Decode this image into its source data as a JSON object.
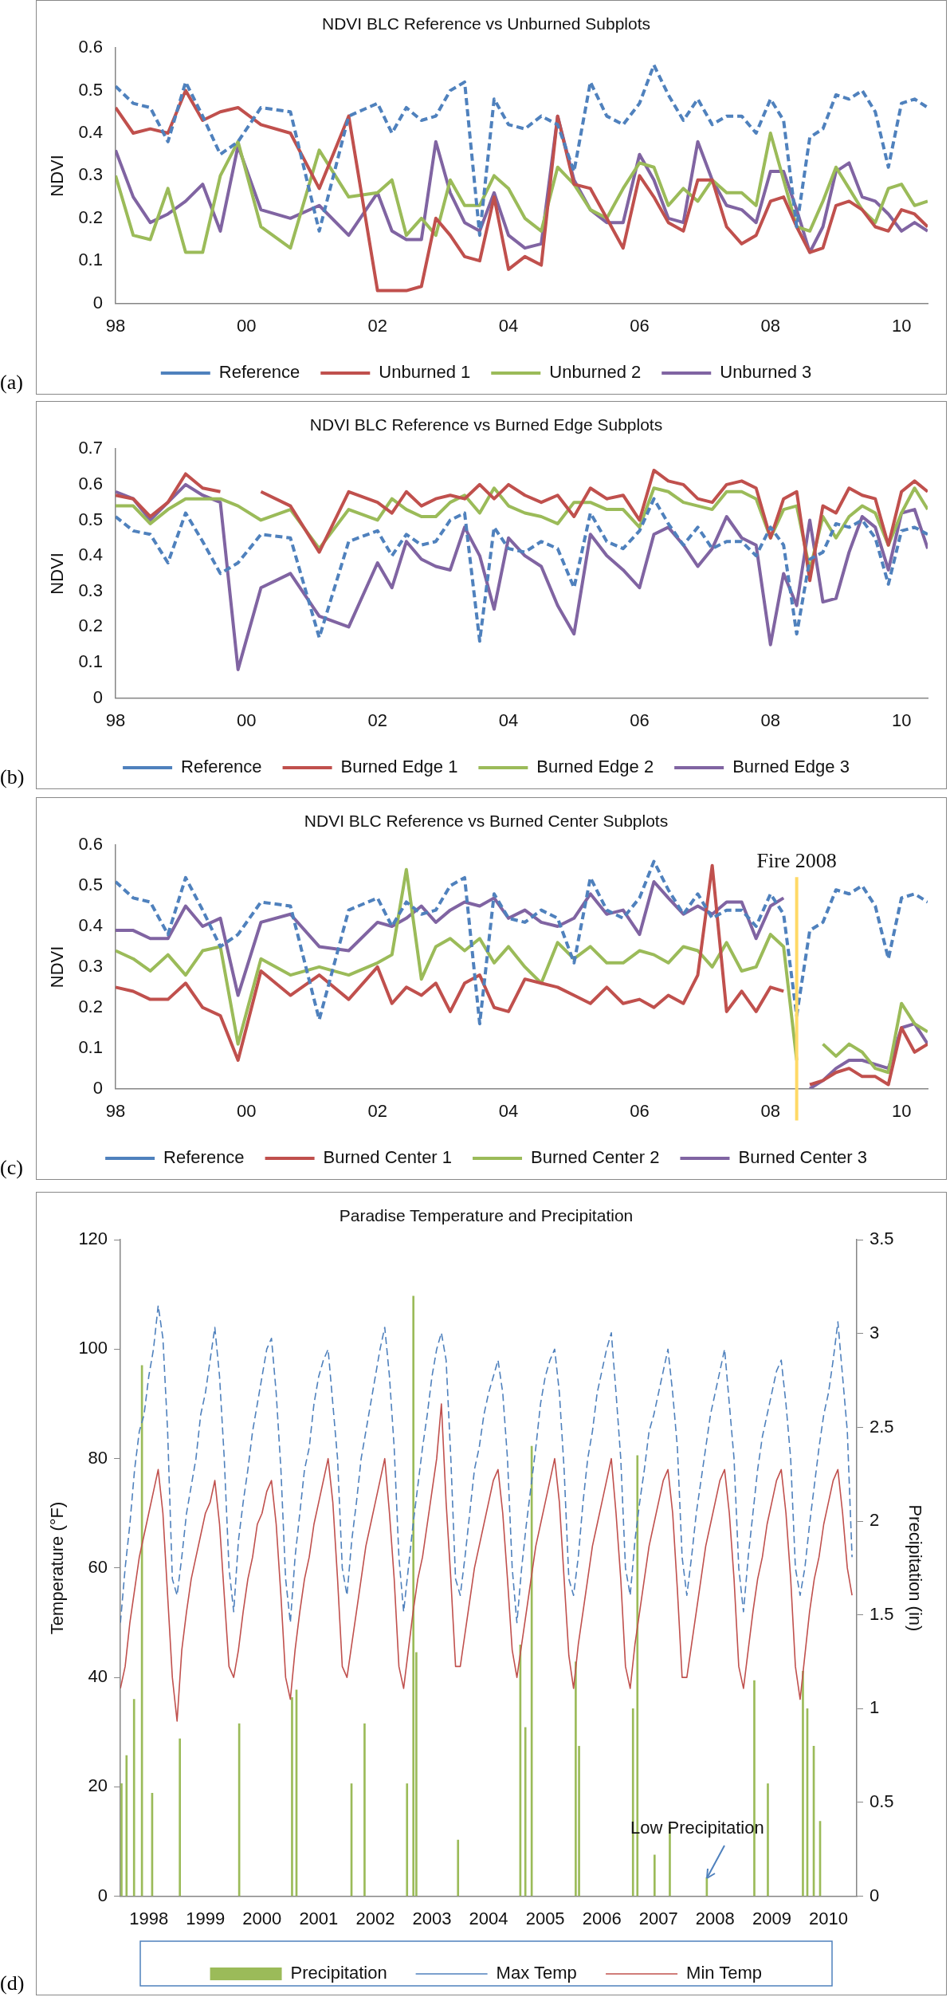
{
  "chart_data": [
    {
      "type": "line",
      "title": "NDVI BLC Reference vs Unburned Subplots",
      "ylabel": "NDVI",
      "legend": "bottom",
      "annotations": [
        "(a)"
      ],
      "x": [
        1998,
        1998.27,
        1998.53,
        1998.8,
        1999.07,
        1999.33,
        1999.6,
        1999.87,
        2000.22,
        2000.67,
        2001.11,
        2001.56,
        2002,
        2002.22,
        2002.44,
        2002.67,
        2002.89,
        2003.11,
        2003.33,
        2003.56,
        2003.78,
        2004,
        2004.25,
        2004.5,
        2004.75,
        2005,
        2005.25,
        2005.5,
        2005.75,
        2006,
        2006.22,
        2006.44,
        2006.67,
        2006.89,
        2007.11,
        2007.33,
        2007.56,
        2007.78,
        2008,
        2008.2,
        2008.4,
        2008.6,
        2008.8,
        2009,
        2009.2,
        2009.4,
        2009.6,
        2009.8,
        2010,
        2010.2,
        2010.4
      ],
      "xlim": [
        1998,
        2010.4
      ],
      "xticks": [
        {
          "value": 1998,
          "label": "98"
        },
        {
          "value": 2000,
          "label": "00"
        },
        {
          "value": 2002,
          "label": "02"
        },
        {
          "value": 2004,
          "label": "04"
        },
        {
          "value": 2006,
          "label": "06"
        },
        {
          "value": 2008,
          "label": "08"
        },
        {
          "value": 2010,
          "label": "10"
        }
      ],
      "ylim": [
        0,
        0.6
      ],
      "yticks": [
        0,
        0.1,
        0.2,
        0.3,
        0.4,
        0.5,
        0.6
      ],
      "series": [
        {
          "name": "Reference",
          "color": "#4f81bd",
          "line_style": "dashed",
          "values": [
            0.51,
            0.47,
            0.46,
            0.38,
            0.52,
            0.44,
            0.35,
            0.38,
            0.46,
            0.45,
            0.17,
            0.44,
            0.47,
            0.4,
            0.46,
            0.43,
            0.44,
            0.5,
            0.52,
            0.16,
            0.48,
            0.42,
            0.41,
            0.44,
            0.42,
            0.31,
            0.52,
            0.44,
            0.42,
            0.47,
            0.56,
            0.49,
            0.43,
            0.48,
            0.42,
            0.44,
            0.44,
            0.4,
            0.48,
            0.43,
            0.18,
            0.39,
            0.41,
            0.49,
            0.48,
            0.5,
            0.45,
            0.32,
            0.47,
            0.48,
            0.46
          ]
        },
        {
          "name": "Unburned 1",
          "color": "#c0504d",
          "values": [
            0.46,
            0.4,
            0.41,
            0.4,
            0.5,
            0.43,
            0.45,
            0.46,
            0.42,
            0.4,
            0.27,
            0.44,
            0.03,
            0.03,
            0.03,
            0.04,
            0.2,
            0.16,
            0.11,
            0.1,
            0.25,
            0.08,
            0.11,
            0.09,
            0.44,
            0.28,
            0.27,
            0.2,
            0.13,
            0.3,
            0.25,
            0.19,
            0.17,
            0.29,
            0.29,
            0.18,
            0.14,
            0.16,
            0.24,
            0.25,
            0.18,
            0.12,
            0.13,
            0.23,
            0.24,
            0.22,
            0.18,
            0.17,
            0.22,
            0.21,
            0.18
          ]
        },
        {
          "name": "Unburned 2",
          "color": "#9bbb59",
          "values": [
            0.3,
            0.16,
            0.15,
            0.27,
            0.12,
            0.12,
            0.3,
            0.38,
            0.18,
            0.13,
            0.36,
            0.25,
            0.26,
            0.29,
            0.16,
            0.2,
            0.16,
            0.29,
            0.23,
            0.23,
            0.3,
            0.27,
            0.2,
            0.17,
            0.32,
            0.28,
            0.22,
            0.2,
            0.27,
            0.33,
            0.32,
            0.23,
            0.27,
            0.24,
            0.29,
            0.26,
            0.26,
            0.23,
            0.4,
            0.29,
            0.18,
            0.17,
            0.24,
            0.32,
            0.27,
            0.22,
            0.19,
            0.27,
            0.28,
            0.23,
            0.24
          ]
        },
        {
          "name": "Unburned 3",
          "color": "#8064a2",
          "values": [
            0.36,
            0.25,
            0.19,
            0.21,
            0.24,
            0.28,
            0.17,
            0.37,
            0.22,
            0.2,
            0.23,
            0.16,
            0.26,
            0.17,
            0.15,
            0.15,
            0.38,
            0.26,
            0.19,
            0.17,
            0.26,
            0.16,
            0.13,
            0.14,
            0.44,
            0.29,
            0.22,
            0.19,
            0.19,
            0.35,
            0.29,
            0.2,
            0.19,
            0.38,
            0.29,
            0.23,
            0.22,
            0.19,
            0.31,
            0.31,
            0.22,
            0.12,
            0.18,
            0.31,
            0.33,
            0.25,
            0.24,
            0.21,
            0.17,
            0.19,
            0.17
          ]
        }
      ]
    },
    {
      "type": "line",
      "title": "NDVI BLC Reference vs Burned Edge Subplots",
      "ylabel": "NDVI",
      "legend": "bottom",
      "annotations": [
        "(b)"
      ],
      "x": [
        1998,
        1998.27,
        1998.53,
        1998.8,
        1999.07,
        1999.33,
        1999.6,
        1999.87,
        2000.22,
        2000.67,
        2001.11,
        2001.56,
        2002,
        2002.22,
        2002.44,
        2002.67,
        2002.89,
        2003.11,
        2003.33,
        2003.56,
        2003.78,
        2004,
        2004.25,
        2004.5,
        2004.75,
        2005,
        2005.25,
        2005.5,
        2005.75,
        2006,
        2006.22,
        2006.44,
        2006.67,
        2006.89,
        2007.11,
        2007.33,
        2007.56,
        2007.78,
        2008,
        2008.2,
        2008.4,
        2008.6,
        2008.8,
        2009,
        2009.2,
        2009.4,
        2009.6,
        2009.8,
        2010,
        2010.2,
        2010.4
      ],
      "xlim": [
        1998,
        2010.4
      ],
      "xticks": [
        {
          "value": 1998,
          "label": "98"
        },
        {
          "value": 2000,
          "label": "00"
        },
        {
          "value": 2002,
          "label": "02"
        },
        {
          "value": 2004,
          "label": "04"
        },
        {
          "value": 2006,
          "label": "06"
        },
        {
          "value": 2008,
          "label": "08"
        },
        {
          "value": 2010,
          "label": "10"
        }
      ],
      "ylim": [
        0,
        0.7
      ],
      "yticks": [
        0,
        0.1,
        0.2,
        0.3,
        0.4,
        0.5,
        0.6,
        0.7
      ],
      "series": [
        {
          "name": "Reference",
          "color": "#4f81bd",
          "line_style": "dashed",
          "values": [
            0.51,
            0.47,
            0.46,
            0.38,
            0.52,
            0.44,
            0.35,
            0.38,
            0.46,
            0.45,
            0.17,
            0.44,
            0.47,
            0.4,
            0.46,
            0.43,
            0.44,
            0.5,
            0.52,
            0.16,
            0.48,
            0.42,
            0.41,
            0.44,
            0.42,
            0.31,
            0.52,
            0.44,
            0.42,
            0.47,
            0.56,
            0.49,
            0.43,
            0.48,
            0.42,
            0.44,
            0.44,
            0.4,
            0.48,
            0.43,
            0.18,
            0.39,
            0.41,
            0.49,
            0.48,
            0.5,
            0.45,
            0.32,
            0.47,
            0.48,
            0.46
          ]
        },
        {
          "name": "Burned Edge 1",
          "color": "#c0504d",
          "values": [
            0.57,
            0.56,
            0.51,
            0.55,
            0.63,
            0.59,
            0.58,
            null,
            0.58,
            0.54,
            0.41,
            0.58,
            0.55,
            0.52,
            0.58,
            0.54,
            0.56,
            0.57,
            0.56,
            0.6,
            0.56,
            0.6,
            0.57,
            0.55,
            0.57,
            0.51,
            0.59,
            0.56,
            0.57,
            0.5,
            0.64,
            0.61,
            0.6,
            0.56,
            0.55,
            0.6,
            0.61,
            0.59,
            0.45,
            0.56,
            0.58,
            0.33,
            0.54,
            0.52,
            0.59,
            0.57,
            0.56,
            0.43,
            0.58,
            0.61,
            0.58
          ]
        },
        {
          "name": "Burned Edge 2",
          "color": "#9bbb59",
          "values": [
            0.54,
            0.54,
            0.49,
            0.53,
            0.56,
            0.56,
            0.56,
            0.54,
            0.5,
            0.53,
            0.42,
            0.53,
            0.5,
            0.56,
            0.53,
            0.51,
            0.51,
            0.55,
            0.57,
            0.52,
            0.59,
            0.54,
            0.52,
            0.51,
            0.49,
            0.55,
            0.55,
            0.53,
            0.53,
            0.48,
            0.59,
            0.58,
            0.55,
            0.54,
            0.53,
            0.58,
            0.58,
            0.56,
            0.45,
            0.53,
            0.54,
            0.36,
            0.51,
            0.45,
            0.51,
            0.54,
            0.52,
            0.43,
            0.52,
            0.59,
            0.53
          ]
        },
        {
          "name": "Burned Edge 3",
          "color": "#8064a2",
          "values": [
            0.58,
            0.56,
            0.5,
            0.55,
            0.6,
            0.57,
            0.55,
            0.08,
            0.31,
            0.35,
            0.23,
            0.2,
            0.38,
            0.31,
            0.44,
            0.39,
            0.37,
            0.36,
            0.48,
            0.4,
            0.25,
            0.45,
            0.4,
            0.37,
            0.26,
            0.18,
            0.46,
            0.4,
            0.36,
            0.31,
            0.46,
            0.48,
            0.43,
            0.37,
            0.42,
            0.51,
            0.45,
            0.43,
            0.15,
            0.35,
            0.26,
            0.5,
            0.27,
            0.28,
            0.41,
            0.51,
            0.48,
            0.36,
            0.52,
            0.53,
            0.42
          ]
        }
      ]
    },
    {
      "type": "line",
      "title": "NDVI BLC Reference vs Burned Center Subplots",
      "ylabel": "NDVI",
      "legend": "bottom",
      "annotations": [
        "(c)"
      ],
      "x": [
        1998,
        1998.27,
        1998.53,
        1998.8,
        1999.07,
        1999.33,
        1999.6,
        1999.87,
        2000.22,
        2000.67,
        2001.11,
        2001.56,
        2002,
        2002.22,
        2002.44,
        2002.67,
        2002.89,
        2003.11,
        2003.33,
        2003.56,
        2003.78,
        2004,
        2004.25,
        2004.5,
        2004.75,
        2005,
        2005.25,
        2005.5,
        2005.75,
        2006,
        2006.22,
        2006.44,
        2006.67,
        2006.89,
        2007.11,
        2007.33,
        2007.56,
        2007.78,
        2008,
        2008.2,
        2008.4,
        2008.6,
        2008.8,
        2009,
        2009.2,
        2009.4,
        2009.6,
        2009.8,
        2010,
        2010.2,
        2010.4
      ],
      "xlim": [
        1998,
        2010.4
      ],
      "xticks": [
        {
          "value": 1998,
          "label": "98"
        },
        {
          "value": 2000,
          "label": "00"
        },
        {
          "value": 2002,
          "label": "02"
        },
        {
          "value": 2004,
          "label": "04"
        },
        {
          "value": 2006,
          "label": "06"
        },
        {
          "value": 2008,
          "label": "08"
        },
        {
          "value": 2010,
          "label": "10"
        }
      ],
      "ylim": [
        0,
        0.6
      ],
      "yticks": [
        0,
        0.1,
        0.2,
        0.3,
        0.4,
        0.5,
        0.6
      ],
      "ref_lines": [
        {
          "axis": "x",
          "value": 2008.4,
          "label": "Fire 2008",
          "color": "#ffd966"
        }
      ],
      "series": [
        {
          "name": "Reference",
          "color": "#4f81bd",
          "line_style": "dashed",
          "values": [
            0.51,
            0.47,
            0.46,
            0.38,
            0.52,
            0.44,
            0.35,
            0.38,
            0.46,
            0.45,
            0.17,
            0.44,
            0.47,
            0.4,
            0.46,
            0.43,
            0.44,
            0.5,
            0.52,
            0.16,
            0.48,
            0.42,
            0.41,
            0.44,
            0.42,
            0.31,
            0.52,
            0.44,
            0.42,
            0.47,
            0.56,
            0.49,
            0.43,
            0.48,
            0.42,
            0.44,
            0.44,
            0.4,
            0.48,
            0.43,
            0.18,
            0.39,
            0.41,
            0.49,
            0.48,
            0.5,
            0.45,
            0.32,
            0.47,
            0.48,
            0.46
          ]
        },
        {
          "name": "Burned Center 1",
          "color": "#c0504d",
          "values": [
            0.25,
            0.24,
            0.22,
            0.22,
            0.26,
            0.2,
            0.18,
            0.07,
            0.29,
            0.23,
            0.28,
            0.22,
            0.3,
            0.21,
            0.25,
            0.23,
            0.26,
            0.19,
            0.26,
            0.28,
            0.2,
            0.19,
            0.27,
            0.26,
            0.25,
            0.23,
            0.21,
            0.25,
            0.21,
            0.22,
            0.2,
            0.23,
            0.21,
            0.28,
            0.55,
            0.19,
            0.24,
            0.19,
            0.25,
            0.24,
            null,
            0.01,
            0.02,
            0.04,
            0.05,
            0.03,
            0.03,
            0.01,
            0.15,
            0.09,
            0.11
          ]
        },
        {
          "name": "Burned Center 2",
          "color": "#9bbb59",
          "values": [
            0.34,
            0.32,
            0.29,
            0.33,
            0.28,
            0.34,
            0.35,
            0.11,
            0.32,
            0.28,
            0.3,
            0.28,
            0.31,
            0.33,
            0.54,
            0.27,
            0.35,
            0.37,
            0.34,
            0.37,
            0.31,
            0.35,
            0.3,
            0.26,
            0.36,
            0.32,
            0.35,
            0.31,
            0.31,
            0.34,
            0.33,
            0.31,
            0.35,
            0.34,
            0.3,
            0.36,
            0.29,
            0.3,
            0.38,
            0.35,
            0.07,
            null,
            0.11,
            0.08,
            0.11,
            0.09,
            0.05,
            0.04,
            0.21,
            0.16,
            0.14
          ]
        },
        {
          "name": "Burned Center 3",
          "color": "#8064a2",
          "values": [
            0.39,
            0.39,
            0.37,
            0.37,
            0.45,
            0.4,
            0.42,
            0.23,
            0.41,
            0.43,
            0.35,
            0.34,
            0.41,
            0.4,
            0.42,
            0.45,
            0.41,
            0.44,
            0.46,
            0.45,
            0.47,
            0.42,
            0.44,
            0.41,
            0.4,
            0.42,
            0.48,
            0.43,
            0.44,
            0.38,
            0.51,
            0.47,
            0.43,
            0.45,
            0.43,
            0.46,
            0.46,
            0.37,
            0.45,
            0.47,
            null,
            0.0,
            0.02,
            0.05,
            0.07,
            0.07,
            0.06,
            0.05,
            0.15,
            0.16,
            0.11
          ]
        }
      ]
    },
    {
      "type": "line",
      "title": "Paradise Temperature and Precipitation",
      "ylabel": "Temperature (°F)",
      "y2label": "Precipitation (in)",
      "legend": "bottom",
      "annotations": [
        "(d)",
        {
          "text": "Low Precipitation",
          "x": "2008-05-08",
          "y": 3.4
        }
      ],
      "x": [
        "1998-01",
        "1998-02",
        "1998-03",
        "1998-04",
        "1998-05",
        "1998-06",
        "1998-07",
        "1998-08",
        "1998-09",
        "1998-10",
        "1998-11",
        "1998-12",
        "1999-01",
        "1999-02",
        "1999-03",
        "1999-04",
        "1999-05",
        "1999-06",
        "1999-07",
        "1999-08",
        "1999-09",
        "1999-10",
        "1999-11",
        "1999-12",
        "2000-01",
        "2000-02",
        "2000-03",
        "2000-04",
        "2000-05",
        "2000-06",
        "2000-07",
        "2000-08",
        "2000-09",
        "2000-10",
        "2000-11",
        "2000-12",
        "2001-01",
        "2001-02",
        "2001-03",
        "2001-04",
        "2001-05",
        "2001-06",
        "2001-07",
        "2001-08",
        "2001-09",
        "2001-10",
        "2001-11",
        "2001-12",
        "2002-01",
        "2002-02",
        "2002-03",
        "2002-04",
        "2002-05",
        "2002-06",
        "2002-07",
        "2002-08",
        "2002-09",
        "2002-10",
        "2002-11",
        "2002-12",
        "2003-01",
        "2003-02",
        "2003-03",
        "2003-04",
        "2003-05",
        "2003-06",
        "2003-07",
        "2003-08",
        "2003-09",
        "2003-10",
        "2003-11",
        "2003-12",
        "2004-01",
        "2004-02",
        "2004-03",
        "2004-04",
        "2004-05",
        "2004-06",
        "2004-07",
        "2004-08",
        "2004-09",
        "2004-10",
        "2004-11",
        "2004-12",
        "2005-01",
        "2005-02",
        "2005-03",
        "2005-04",
        "2005-05",
        "2005-06",
        "2005-07",
        "2005-08",
        "2005-09",
        "2005-10",
        "2005-11",
        "2005-12",
        "2006-01",
        "2006-02",
        "2006-03",
        "2006-04",
        "2006-05",
        "2006-06",
        "2006-07",
        "2006-08",
        "2006-09",
        "2006-10",
        "2006-11",
        "2006-12",
        "2007-01",
        "2007-02",
        "2007-03",
        "2007-04",
        "2007-05",
        "2007-06",
        "2007-07",
        "2007-08",
        "2007-09",
        "2007-10",
        "2007-11",
        "2007-12",
        "2008-01",
        "2008-02",
        "2008-03",
        "2008-04",
        "2008-05",
        "2008-06",
        "2008-07",
        "2008-08",
        "2008-09",
        "2008-10",
        "2008-11",
        "2008-12",
        "2009-01",
        "2009-02",
        "2009-03",
        "2009-04",
        "2009-05",
        "2009-06",
        "2009-07",
        "2009-08",
        "2009-09",
        "2009-10",
        "2009-11",
        "2009-12",
        "2010-01",
        "2010-02",
        "2010-03",
        "2010-04",
        "2010-05",
        "2010-06",
        "2010-07",
        "2010-08",
        "2010-09",
        "2010-10",
        "2010-11",
        "2010-12"
      ],
      "xlim": [
        "1998-01",
        "2011-01"
      ],
      "xticks": [
        {
          "value": "1998-07",
          "label": "1998"
        },
        {
          "value": "1999-07",
          "label": "1999"
        },
        {
          "value": "2000-07",
          "label": "2000"
        },
        {
          "value": "2001-07",
          "label": "2001"
        },
        {
          "value": "2002-07",
          "label": "2002"
        },
        {
          "value": "2003-07",
          "label": "2003"
        },
        {
          "value": "2004-07",
          "label": "2004"
        },
        {
          "value": "2005-07",
          "label": "2005"
        },
        {
          "value": "2006-07",
          "label": "2006"
        },
        {
          "value": "2007-07",
          "label": "2007"
        },
        {
          "value": "2008-07",
          "label": "2008"
        },
        {
          "value": "2009-07",
          "label": "2009"
        },
        {
          "value": "2010-07",
          "label": "2010"
        }
      ],
      "ylim": [
        0,
        120
      ],
      "yticks": [
        0,
        20,
        40,
        60,
        80,
        100,
        120
      ],
      "y2lim": [
        0,
        3.5
      ],
      "y2ticks": [
        0,
        0.5,
        1,
        1.5,
        2,
        2.5,
        3,
        3.5
      ],
      "series": [
        {
          "name": "Precipitation",
          "type": "bar",
          "axis": "y2",
          "color": "#9bbb59",
          "x": [
            "1998-01-08",
            "1998-02-10",
            "1998-03-28",
            "1998-05-18",
            "1998-07-23",
            "1999-01-19",
            "2000-02-06",
            "2001-01-12",
            "2001-02-10",
            "2002-01-30",
            "2002-04-23",
            "2003-01-23",
            "2003-03-03",
            "2003-03-22",
            "2003-12-17",
            "2005-01-23",
            "2005-02-25",
            "2005-04-05",
            "2006-01-15",
            "2006-02-06",
            "2007-01-19",
            "2007-02-17",
            "2007-06-06",
            "2007-09-13",
            "2008-05-08",
            "2009-03-10",
            "2009-06-06",
            "2010-01-19",
            "2010-02-17",
            "2010-03-28",
            "2010-05-08"
          ],
          "values": [
            0.6,
            0.75,
            1.05,
            2.83,
            0.55,
            0.84,
            0.92,
            1.06,
            1.1,
            0.6,
            0.92,
            0.6,
            3.2,
            1.3,
            0.3,
            1.34,
            0.9,
            2.4,
            1.25,
            0.8,
            1.0,
            2.35,
            0.22,
            0.38,
            0.1,
            1.15,
            0.6,
            1.2,
            1.0,
            0.8,
            0.4
          ]
        },
        {
          "name": "Max Temp",
          "color": "#4f81bd",
          "line_style": "dashed",
          "values": [
            50,
            60,
            68,
            78,
            85,
            88,
            95,
            100,
            108,
            102,
            85,
            58,
            55,
            62,
            70,
            75,
            80,
            88,
            92,
            98,
            104,
            95,
            80,
            60,
            52,
            65,
            72,
            78,
            85,
            90,
            95,
            100,
            102,
            92,
            78,
            58,
            50,
            62,
            70,
            78,
            82,
            90,
            95,
            98,
            100,
            90,
            80,
            60,
            55,
            65,
            72,
            80,
            85,
            90,
            95,
            100,
            104,
            95,
            82,
            62,
            52,
            60,
            68,
            75,
            82,
            88,
            95,
            100,
            103,
            98,
            80,
            58,
            55,
            62,
            70,
            78,
            82,
            88,
            92,
            95,
            98,
            92,
            80,
            60,
            50,
            60,
            68,
            75,
            82,
            90,
            95,
            98,
            100,
            92,
            78,
            58,
            55,
            62,
            72,
            80,
            85,
            92,
            96,
            100,
            103,
            92,
            80,
            60,
            55,
            65,
            72,
            78,
            85,
            88,
            92,
            96,
            100,
            92,
            82,
            62,
            55,
            62,
            70,
            76,
            82,
            88,
            92,
            96,
            100,
            90,
            80,
            60,
            52,
            62,
            70,
            78,
            84,
            88,
            92,
            96,
            98,
            90,
            80,
            60,
            55,
            60,
            68,
            75,
            82,
            88,
            92,
            98,
            105,
            95,
            85,
            62
          ]
        },
        {
          "name": "Min Temp",
          "color": "#c0504d",
          "values": [
            38,
            42,
            50,
            56,
            62,
            66,
            70,
            74,
            78,
            70,
            55,
            40,
            32,
            45,
            52,
            58,
            62,
            66,
            70,
            72,
            76,
            68,
            55,
            42,
            40,
            45,
            52,
            58,
            62,
            68,
            70,
            74,
            76,
            68,
            55,
            40,
            36,
            45,
            52,
            58,
            62,
            68,
            72,
            76,
            80,
            72,
            58,
            42,
            40,
            46,
            52,
            58,
            64,
            68,
            72,
            76,
            80,
            70,
            58,
            42,
            38,
            45,
            52,
            58,
            62,
            68,
            74,
            80,
            90,
            72,
            58,
            42,
            42,
            48,
            54,
            60,
            64,
            68,
            72,
            76,
            78,
            70,
            58,
            45,
            40,
            46,
            52,
            58,
            64,
            68,
            72,
            76,
            80,
            72,
            58,
            44,
            38,
            46,
            52,
            58,
            64,
            68,
            72,
            76,
            80,
            70,
            58,
            42,
            38,
            46,
            52,
            58,
            64,
            68,
            72,
            76,
            78,
            70,
            56,
            40,
            40,
            46,
            52,
            58,
            64,
            68,
            72,
            76,
            78,
            70,
            58,
            42,
            38,
            45,
            52,
            58,
            62,
            68,
            72,
            76,
            78,
            70,
            58,
            42,
            36,
            44,
            52,
            58,
            62,
            68,
            72,
            76,
            78,
            70,
            60,
            55
          ]
        }
      ]
    }
  ]
}
